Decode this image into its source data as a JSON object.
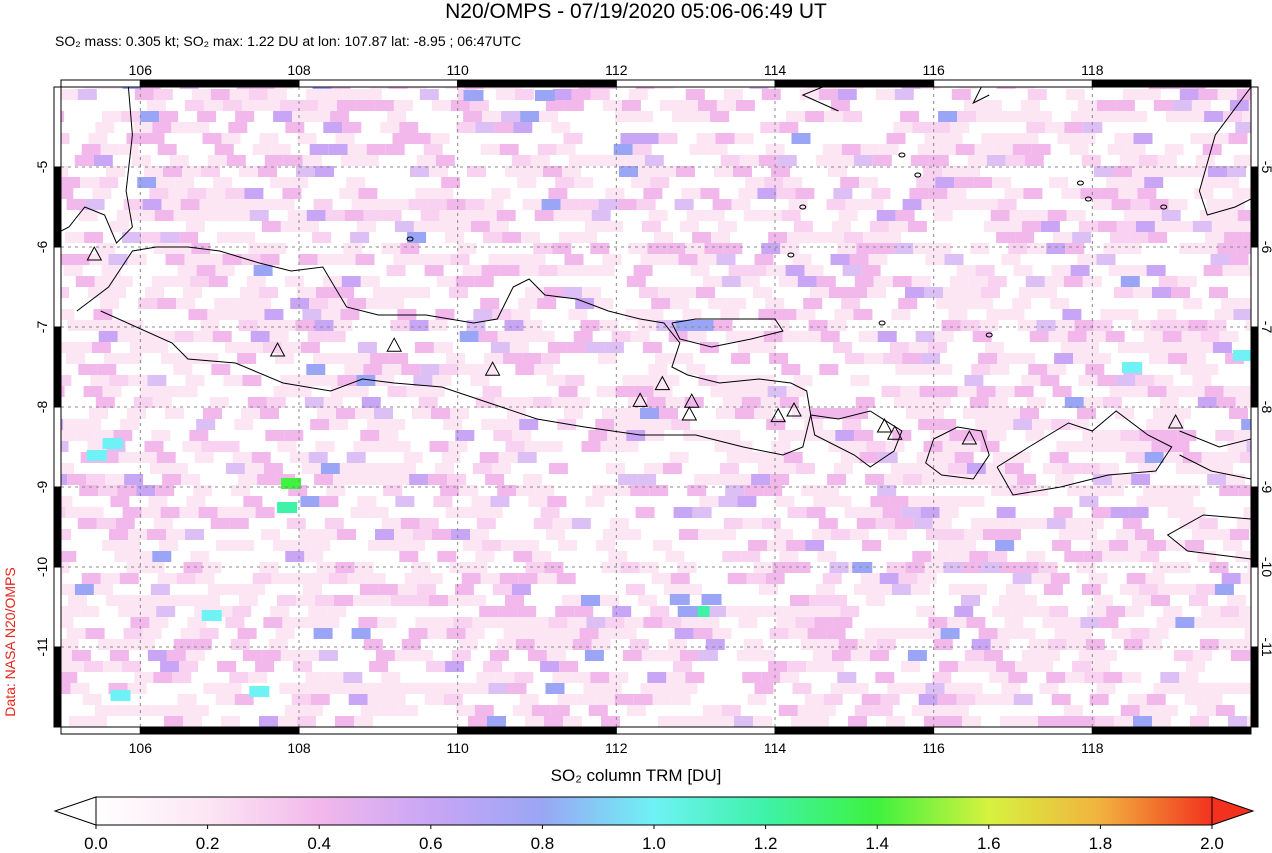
{
  "title": "N20/OMPS - 07/19/2020 05:06-06:49 UT",
  "subtitle": "SO₂ mass: 0.305 kt; SO₂ max: 1.22 DU at lon: 107.87 lat: -8.95 ; 06:47UTC",
  "credit": "Data: NASA N20/OMPS",
  "colorbar": {
    "label": "SO₂ column TRM [DU]",
    "ticks": [
      "0.0",
      "0.2",
      "0.4",
      "0.6",
      "0.8",
      "1.0",
      "1.2",
      "1.4",
      "1.6",
      "1.8",
      "2.0"
    ],
    "range": [
      0.0,
      2.0
    ],
    "colors": [
      "#ffffff",
      "#fce6f4",
      "#f2b8ec",
      "#c9a6f5",
      "#9aa6f5",
      "#6ef2f5",
      "#3ef2a8",
      "#3ef23e",
      "#d6f23e",
      "#f2b23e",
      "#f2321e"
    ]
  },
  "map": {
    "lon_range": [
      105.0,
      120.0
    ],
    "lat_range": [
      -12.0,
      -4.0
    ],
    "lon_ticks": [
      "106",
      "108",
      "110",
      "112",
      "114",
      "116",
      "118"
    ],
    "lat_ticks": [
      "-5",
      "-6",
      "-7",
      "-8",
      "-9",
      "-10",
      "-11"
    ],
    "volcanoes": [
      [
        105.42,
        -6.1
      ],
      [
        107.73,
        -7.3
      ],
      [
        109.2,
        -7.24
      ],
      [
        110.44,
        -7.54
      ],
      [
        112.3,
        -7.93
      ],
      [
        112.58,
        -7.72
      ],
      [
        112.95,
        -7.94
      ],
      [
        112.92,
        -8.1
      ],
      [
        114.04,
        -8.12
      ],
      [
        114.24,
        -8.05
      ],
      [
        115.38,
        -8.25
      ],
      [
        115.51,
        -8.34
      ],
      [
        116.45,
        -8.4
      ],
      [
        119.05,
        -8.2
      ]
    ]
  }
}
